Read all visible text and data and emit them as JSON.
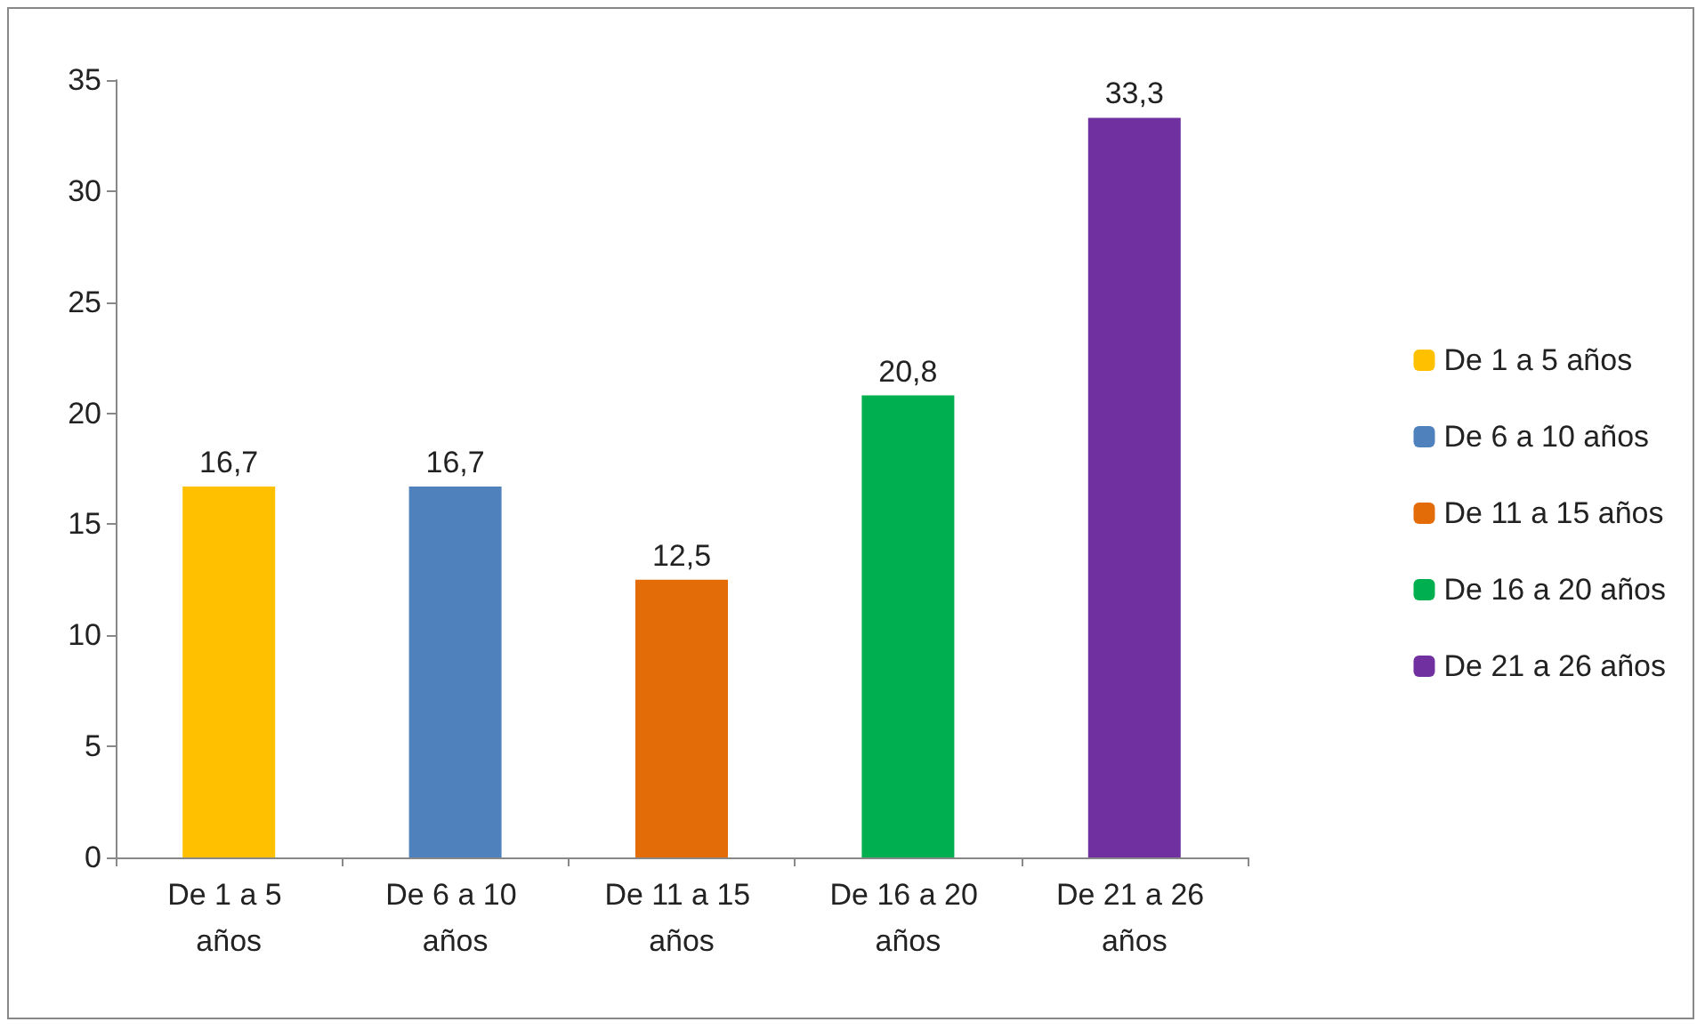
{
  "chart_data": {
    "type": "bar",
    "categories": [
      "De 1 a 5 años",
      "De 6 a 10 años",
      "De 11 a 15 años",
      "De 16 a 20 años",
      "De 21 a 26 años"
    ],
    "series": [
      {
        "name": "De 1 a 5 años",
        "color": "#ffc000",
        "values": [
          16.7,
          null,
          null,
          null,
          null
        ],
        "value_labels": [
          "16,7",
          null,
          null,
          null,
          null
        ]
      },
      {
        "name": "De 6 a 10 años",
        "color": "#4f81bd",
        "values": [
          null,
          16.7,
          null,
          null,
          null
        ],
        "value_labels": [
          null,
          "16,7",
          null,
          null,
          null
        ]
      },
      {
        "name": "De 11 a 15 años",
        "color": "#e36c09",
        "values": [
          null,
          null,
          12.5,
          null,
          null
        ],
        "value_labels": [
          null,
          null,
          "12,5",
          null,
          null
        ]
      },
      {
        "name": "De 16 a 20 años",
        "color": "#00b050",
        "values": [
          null,
          null,
          null,
          20.8,
          null
        ],
        "value_labels": [
          null,
          null,
          null,
          "20,8",
          null
        ]
      },
      {
        "name": "De 21 a 26 años",
        "color": "#7030a0",
        "values": [
          null,
          null,
          null,
          null,
          33.3
        ],
        "value_labels": [
          null,
          null,
          null,
          null,
          "33,3"
        ]
      }
    ],
    "stacked": true,
    "ylim": [
      0,
      35
    ],
    "yticks": [
      0,
      5,
      10,
      15,
      20,
      25,
      30,
      35
    ],
    "grid": false,
    "legend": "right"
  }
}
